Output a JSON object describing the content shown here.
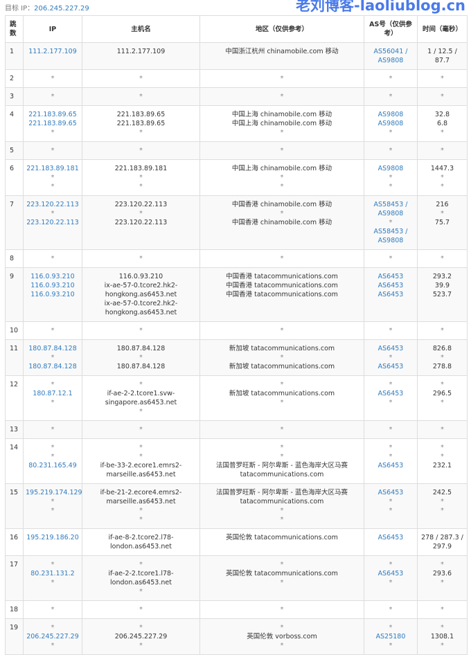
{
  "target": {
    "label": "目标 IP：",
    "ip": "206.245.227.29"
  },
  "colors": {
    "link": "#2f7bbf",
    "asterisk": "#888888",
    "watermark": "#3b6fe8"
  },
  "headers": [
    "跳数",
    "IP",
    "主机名",
    "地区（仅供参考）",
    "AS号（仅供参考）",
    "时间（毫秒）"
  ],
  "rows": [
    {
      "hop": "1",
      "ip": [
        "111.2.177.109"
      ],
      "host": [
        "111.2.177.109"
      ],
      "region": [
        "中国浙江杭州 chinamobile.com 移动"
      ],
      "as": [
        "AS56041 /",
        "AS9808"
      ],
      "time": [
        "1 / 12.5 /",
        "87.7"
      ]
    },
    {
      "hop": "2",
      "ip": [
        "*"
      ],
      "host": [
        "*"
      ],
      "region": [
        "*"
      ],
      "as": [
        "*"
      ],
      "time": [
        "*"
      ]
    },
    {
      "hop": "3",
      "ip": [
        "*"
      ],
      "host": [
        "*"
      ],
      "region": [
        "*"
      ],
      "as": [
        "*"
      ],
      "time": [
        "*"
      ]
    },
    {
      "hop": "4",
      "ip": [
        "221.183.89.65",
        "221.183.89.65",
        "*"
      ],
      "host": [
        "221.183.89.65",
        "221.183.89.65",
        "*"
      ],
      "region": [
        "中国上海 chinamobile.com 移动",
        "中国上海 chinamobile.com 移动",
        "*"
      ],
      "as": [
        "AS9808",
        "AS9808",
        "*"
      ],
      "time": [
        "32.8",
        "6.8",
        "*"
      ]
    },
    {
      "hop": "5",
      "ip": [
        "*"
      ],
      "host": [
        "*"
      ],
      "region": [
        "*"
      ],
      "as": [
        "*"
      ],
      "time": [
        "*"
      ]
    },
    {
      "hop": "6",
      "ip": [
        "221.183.89.181",
        "*",
        "*"
      ],
      "host": [
        "221.183.89.181",
        "*",
        "*"
      ],
      "region": [
        "中国上海 chinamobile.com 移动",
        "*",
        "*"
      ],
      "as": [
        "AS9808",
        "*",
        "*"
      ],
      "time": [
        "1447.3",
        "*",
        "*"
      ]
    },
    {
      "hop": "7",
      "ip": [
        "223.120.22.113",
        "*",
        "223.120.22.113"
      ],
      "host": [
        "223.120.22.113",
        "*",
        "223.120.22.113"
      ],
      "region": [
        "中国香港 chinamobile.com 移动",
        "*",
        "中国香港 chinamobile.com 移动"
      ],
      "as": [
        "AS58453 /",
        "AS9808",
        "*",
        "AS58453 /",
        "AS9808"
      ],
      "time": [
        "216",
        "*",
        "75.7"
      ]
    },
    {
      "hop": "8",
      "ip": [
        "*"
      ],
      "host": [
        "*"
      ],
      "region": [
        "*"
      ],
      "as": [
        "*"
      ],
      "time": [
        "*"
      ]
    },
    {
      "hop": "9",
      "ip": [
        "116.0.93.210",
        "116.0.93.210",
        "116.0.93.210"
      ],
      "host": [
        "116.0.93.210",
        "ix-ae-57-0.tcore2.hk2-",
        "hongkong.as6453.net",
        "ix-ae-57-0.tcore2.hk2-",
        "hongkong.as6453.net"
      ],
      "region": [
        "中国香港 tatacommunications.com",
        "中国香港 tatacommunications.com",
        "中国香港 tatacommunications.com"
      ],
      "as": [
        "AS6453",
        "AS6453",
        "AS6453"
      ],
      "time": [
        "293.2",
        "39.9",
        "523.7"
      ]
    },
    {
      "hop": "10",
      "ip": [
        "*"
      ],
      "host": [
        "*"
      ],
      "region": [
        "*"
      ],
      "as": [
        "*"
      ],
      "time": [
        "*"
      ]
    },
    {
      "hop": "11",
      "ip": [
        "180.87.84.128",
        "*",
        "180.87.84.128"
      ],
      "host": [
        "180.87.84.128",
        "*",
        "180.87.84.128"
      ],
      "region": [
        "新加坡 tatacommunications.com",
        "*",
        "新加坡 tatacommunications.com"
      ],
      "as": [
        "AS6453",
        "*",
        "AS6453"
      ],
      "time": [
        "826.8",
        "*",
        "278.8"
      ]
    },
    {
      "hop": "12",
      "ip": [
        "*",
        "180.87.12.1",
        "*"
      ],
      "host": [
        "*",
        "if-ae-2-2.tcore1.svw-",
        "singapore.as6453.net",
        "*"
      ],
      "region": [
        "*",
        "新加坡 tatacommunications.com",
        "*"
      ],
      "as": [
        "*",
        "AS6453",
        "*"
      ],
      "time": [
        "*",
        "296.5",
        "*"
      ]
    },
    {
      "hop": "13",
      "ip": [
        "*"
      ],
      "host": [
        "*"
      ],
      "region": [
        "*"
      ],
      "as": [
        "*"
      ],
      "time": [
        "*"
      ]
    },
    {
      "hop": "14",
      "ip": [
        "*",
        "*",
        "80.231.165.49"
      ],
      "host": [
        "*",
        "*",
        "if-be-33-2.ecore1.emrs2-",
        "marseille.as6453.net"
      ],
      "region": [
        "*",
        "*",
        "法国普罗旺斯 - 阿尔卑斯 - 蓝色海岸大区马赛",
        "tatacommunications.com"
      ],
      "as": [
        "*",
        "*",
        "AS6453"
      ],
      "time": [
        "*",
        "*",
        "232.1"
      ]
    },
    {
      "hop": "15",
      "ip": [
        "195.219.174.129",
        "*",
        "*"
      ],
      "host": [
        "if-be-21-2.ecore4.emrs2-",
        "marseille.as6453.net",
        "*",
        "*"
      ],
      "region": [
        "法国普罗旺斯 - 阿尔卑斯 - 蓝色海岸大区马赛",
        "tatacommunications.com",
        "*",
        "*"
      ],
      "as": [
        "AS6453",
        "*",
        "*"
      ],
      "time": [
        "242.5",
        "*",
        "*"
      ]
    },
    {
      "hop": "16",
      "ip": [
        "195.219.186.20"
      ],
      "host": [
        "if-ae-8-2.tcore2.l78-",
        "london.as6453.net"
      ],
      "region": [
        "英国伦敦 tatacommunications.com"
      ],
      "as": [
        "AS6453"
      ],
      "time": [
        "278 / 287.3 /",
        "297.9"
      ]
    },
    {
      "hop": "17",
      "ip": [
        "*",
        "80.231.131.2",
        "*"
      ],
      "host": [
        "*",
        "if-ae-2-2.tcore1.l78-",
        "london.as6453.net",
        "*"
      ],
      "region": [
        "*",
        "英国伦敦 tatacommunications.com",
        "*"
      ],
      "as": [
        "*",
        "AS6453",
        "*"
      ],
      "time": [
        "*",
        "293.6",
        "*"
      ]
    },
    {
      "hop": "18",
      "ip": [
        "*"
      ],
      "host": [
        "*"
      ],
      "region": [
        "*"
      ],
      "as": [
        "*"
      ],
      "time": [
        "*"
      ]
    },
    {
      "hop": "19",
      "ip": [
        "*",
        "206.245.227.29",
        "*"
      ],
      "host": [
        "*",
        "206.245.227.29",
        "*"
      ],
      "region": [
        "*",
        "英国伦敦 vorboss.com",
        "*"
      ],
      "as": [
        "*",
        "AS25180",
        "*"
      ],
      "time": [
        "*",
        "1308.1",
        "*"
      ]
    }
  ],
  "watermark": "老刘博客-laoliublog.cn"
}
